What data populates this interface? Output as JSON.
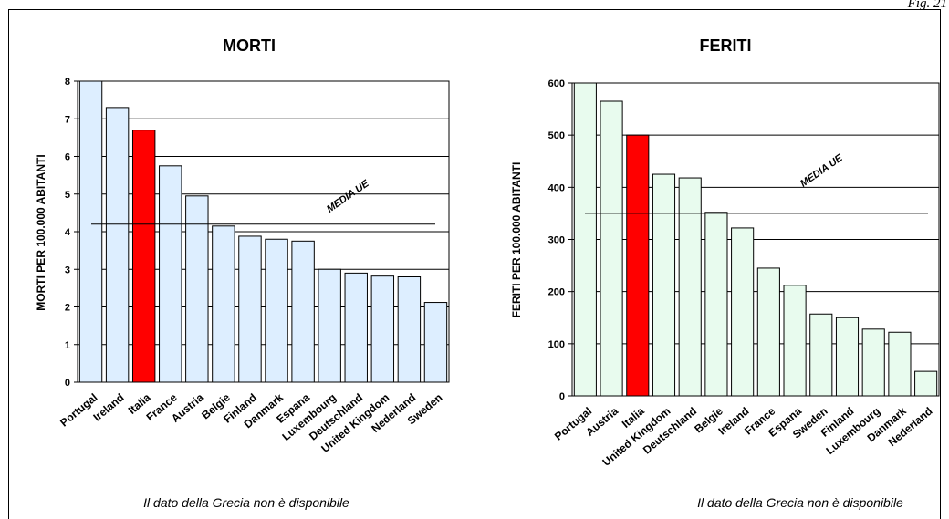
{
  "figure_label": "Fig. 21",
  "chart_data": [
    {
      "type": "bar",
      "title": "MORTI",
      "ylabel": "MORTI PER 100.000 ABITANTI",
      "xlabel": "",
      "ylim": [
        0,
        8
      ],
      "yticks": [
        0,
        1,
        2,
        3,
        4,
        5,
        6,
        7,
        8
      ],
      "grid": true,
      "categories": [
        "Portugal",
        "Ireland",
        "Italia",
        "France",
        "Austria",
        "Belgie",
        "Finland",
        "Danmark",
        "Espana",
        "Luxembourg",
        "Deutschland",
        "United Kingdom",
        "Nederland",
        "Sweden"
      ],
      "values": [
        8.0,
        7.3,
        6.7,
        5.75,
        4.95,
        4.15,
        3.88,
        3.8,
        3.75,
        3.0,
        2.9,
        2.82,
        2.8,
        2.12
      ],
      "highlight": "Italia",
      "bar_color": "#ddeeff",
      "highlight_color": "#ff0000",
      "reference_line": {
        "label": "MEDIA UE",
        "value": 4.2
      },
      "note": "Il dato della Grecia non è disponibile"
    },
    {
      "type": "bar",
      "title": "FERITI",
      "ylabel": "FERITI PER 100.000 ABITANTI",
      "xlabel": "",
      "ylim": [
        0,
        600
      ],
      "yticks": [
        0,
        100,
        200,
        300,
        400,
        500,
        600
      ],
      "grid": true,
      "categories": [
        "Portugal",
        "Austria",
        "Italia",
        "United Kingdom",
        "Deutschland",
        "Belgie",
        "Ireland",
        "France",
        "Espana",
        "Sweden",
        "Finland",
        "Luxembourg",
        "Danmark",
        "Nederland"
      ],
      "values": [
        600,
        565,
        500,
        425,
        418,
        352,
        322,
        245,
        212,
        157,
        150,
        128,
        122,
        47
      ],
      "highlight": "Italia",
      "bar_color": "#e8fbee",
      "highlight_color": "#ff0000",
      "reference_line": {
        "label": "MEDIA UE",
        "value": 350
      },
      "note": "Il dato della Grecia non è disponibile"
    }
  ]
}
